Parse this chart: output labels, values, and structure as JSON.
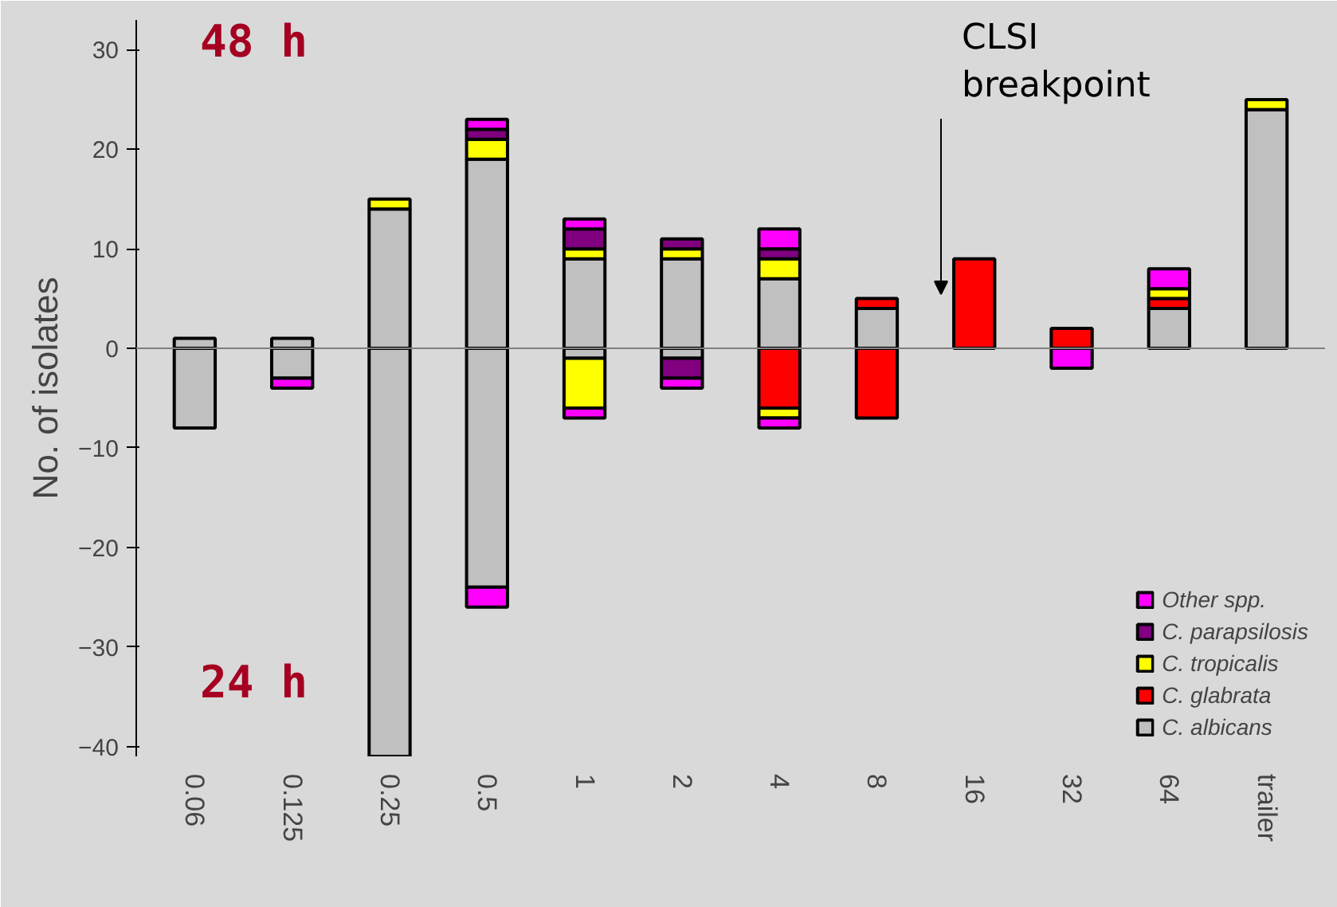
{
  "chart_data": {
    "type": "bar",
    "stacked": true,
    "ylabel": "No. of isolates",
    "categories": [
      "0.06",
      "0.125",
      "0.25",
      "0.5",
      "1",
      "2",
      "4",
      "8",
      "16",
      "32",
      "64",
      "trailer"
    ],
    "series": [
      {
        "name": "C. albicans",
        "color": "#c0c0c0",
        "values": [
          1,
          1,
          14,
          19,
          9,
          9,
          7,
          4,
          0,
          0,
          4,
          24
        ]
      },
      {
        "name": "C. glabrata",
        "color": "#ff0000",
        "values": [
          0,
          0,
          0,
          0,
          0,
          0,
          0,
          1,
          9,
          2,
          1,
          0
        ]
      },
      {
        "name": "C. tropicalis",
        "color": "#ffff00",
        "values": [
          0,
          0,
          1,
          2,
          1,
          1,
          2,
          0,
          0,
          0,
          1,
          1
        ]
      },
      {
        "name": "C. parapsilosis",
        "color": "#800080",
        "values": [
          0,
          0,
          0,
          1,
          2,
          1,
          1,
          0,
          0,
          0,
          0,
          0
        ]
      },
      {
        "name": "Other spp.",
        "color": "#ff00ff",
        "values": [
          0,
          0,
          0,
          1,
          1,
          0,
          2,
          0,
          0,
          0,
          2,
          0
        ]
      },
      {
        "color": "#c0c0c0",
        "values": [
          -8,
          -3,
          -41,
          -24,
          -1,
          -1,
          0,
          0,
          0,
          0,
          0,
          0
        ]
      },
      {
        "color": "#ff0000",
        "values": [
          0,
          0,
          0,
          0,
          0,
          0,
          -6,
          -7,
          0,
          0,
          0,
          0
        ]
      },
      {
        "color": "#ffff00",
        "values": [
          0,
          0,
          0,
          0,
          -5,
          0,
          -1,
          0,
          0,
          0,
          0,
          0
        ]
      },
      {
        "color": "#800080",
        "values": [
          0,
          0,
          0,
          0,
          0,
          -2,
          0,
          0,
          0,
          0,
          0,
          0
        ]
      },
      {
        "color": "#ff00ff",
        "values": [
          0,
          -1,
          0,
          -2,
          -1,
          -1,
          -1,
          0,
          0,
          -2,
          0,
          0
        ]
      }
    ],
    "ylim": [
      -41,
      33
    ],
    "yticks": [
      -40,
      -30,
      -20,
      -10,
      0,
      10,
      20,
      30
    ],
    "grid": false,
    "legend": "bottom right",
    "ref_lines": [
      {
        "axis": "y",
        "value": 0,
        "color": "#808080"
      }
    ],
    "annotations": [
      "48 h",
      "24 h",
      "CLSI breakpoint"
    ]
  }
}
